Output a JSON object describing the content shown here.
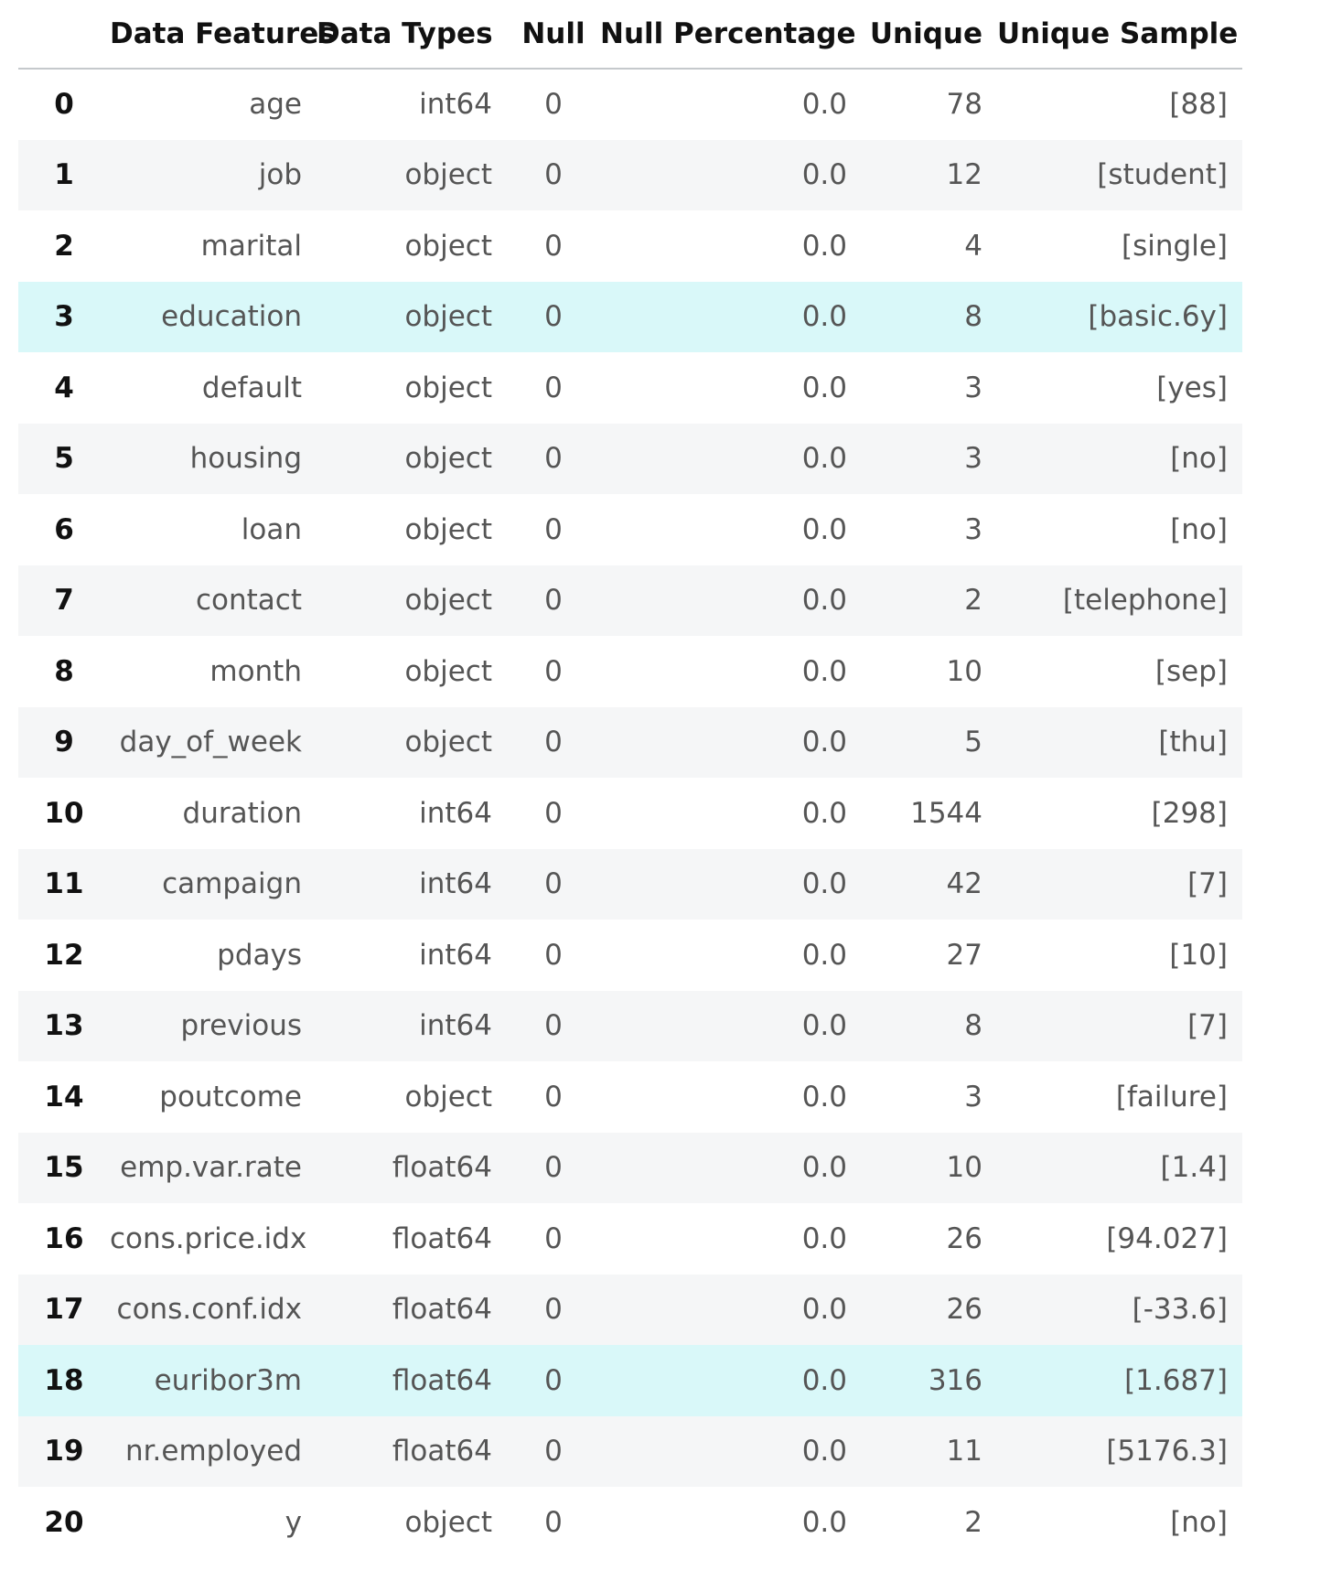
{
  "table": {
    "headers": [
      "Data Features",
      "Data Types",
      "Null",
      "Null Percentage",
      "Unique",
      "Unique Sample"
    ],
    "rows": [
      {
        "idx": "0",
        "feature": "age",
        "dtype": "int64",
        "null": "0",
        "null_pct": "0.0",
        "unique": "78",
        "sample": "[88]"
      },
      {
        "idx": "1",
        "feature": "job",
        "dtype": "object",
        "null": "0",
        "null_pct": "0.0",
        "unique": "12",
        "sample": "[student]"
      },
      {
        "idx": "2",
        "feature": "marital",
        "dtype": "object",
        "null": "0",
        "null_pct": "0.0",
        "unique": "4",
        "sample": "[single]"
      },
      {
        "idx": "3",
        "feature": "education",
        "dtype": "object",
        "null": "0",
        "null_pct": "0.0",
        "unique": "8",
        "sample": "[basic.6y]"
      },
      {
        "idx": "4",
        "feature": "default",
        "dtype": "object",
        "null": "0",
        "null_pct": "0.0",
        "unique": "3",
        "sample": "[yes]"
      },
      {
        "idx": "5",
        "feature": "housing",
        "dtype": "object",
        "null": "0",
        "null_pct": "0.0",
        "unique": "3",
        "sample": "[no]"
      },
      {
        "idx": "6",
        "feature": "loan",
        "dtype": "object",
        "null": "0",
        "null_pct": "0.0",
        "unique": "3",
        "sample": "[no]"
      },
      {
        "idx": "7",
        "feature": "contact",
        "dtype": "object",
        "null": "0",
        "null_pct": "0.0",
        "unique": "2",
        "sample": "[telephone]"
      },
      {
        "idx": "8",
        "feature": "month",
        "dtype": "object",
        "null": "0",
        "null_pct": "0.0",
        "unique": "10",
        "sample": "[sep]"
      },
      {
        "idx": "9",
        "feature": "day_of_week",
        "dtype": "object",
        "null": "0",
        "null_pct": "0.0",
        "unique": "5",
        "sample": "[thu]"
      },
      {
        "idx": "10",
        "feature": "duration",
        "dtype": "int64",
        "null": "0",
        "null_pct": "0.0",
        "unique": "1544",
        "sample": "[298]"
      },
      {
        "idx": "11",
        "feature": "campaign",
        "dtype": "int64",
        "null": "0",
        "null_pct": "0.0",
        "unique": "42",
        "sample": "[7]"
      },
      {
        "idx": "12",
        "feature": "pdays",
        "dtype": "int64",
        "null": "0",
        "null_pct": "0.0",
        "unique": "27",
        "sample": "[10]"
      },
      {
        "idx": "13",
        "feature": "previous",
        "dtype": "int64",
        "null": "0",
        "null_pct": "0.0",
        "unique": "8",
        "sample": "[7]"
      },
      {
        "idx": "14",
        "feature": "poutcome",
        "dtype": "object",
        "null": "0",
        "null_pct": "0.0",
        "unique": "3",
        "sample": "[failure]"
      },
      {
        "idx": "15",
        "feature": "emp.var.rate",
        "dtype": "float64",
        "null": "0",
        "null_pct": "0.0",
        "unique": "10",
        "sample": "[1.4]"
      },
      {
        "idx": "16",
        "feature": "cons.price.idx",
        "dtype": "float64",
        "null": "0",
        "null_pct": "0.0",
        "unique": "26",
        "sample": "[94.027]"
      },
      {
        "idx": "17",
        "feature": "cons.conf.idx",
        "dtype": "float64",
        "null": "0",
        "null_pct": "0.0",
        "unique": "26",
        "sample": "[-33.6]"
      },
      {
        "idx": "18",
        "feature": "euribor3m",
        "dtype": "float64",
        "null": "0",
        "null_pct": "0.0",
        "unique": "316",
        "sample": "[1.687]"
      },
      {
        "idx": "19",
        "feature": "nr.employed",
        "dtype": "float64",
        "null": "0",
        "null_pct": "0.0",
        "unique": "11",
        "sample": "[5176.3]"
      },
      {
        "idx": "20",
        "feature": "y",
        "dtype": "object",
        "null": "0",
        "null_pct": "0.0",
        "unique": "2",
        "sample": "[no]"
      }
    ],
    "highlighted_rows": [
      3,
      18
    ],
    "colors": {
      "highlight": "#d9f8f9",
      "stripe": "#f5f6f7",
      "header_border": "#c5c9cc"
    }
  }
}
